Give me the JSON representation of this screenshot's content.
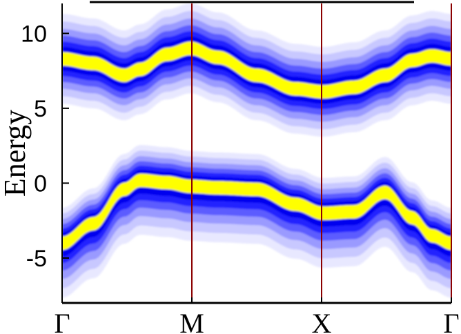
{
  "chart_data": {
    "type": "heatmap",
    "subtype": "band-structure spectral function (filled contours)",
    "ylabel": "Energy",
    "ylim": [
      -8,
      12
    ],
    "y_ticks": [
      {
        "value": 10,
        "label": "10"
      },
      {
        "value": 5,
        "label": "5"
      },
      {
        "value": 0,
        "label": "0"
      },
      {
        "value": -5,
        "label": "-5"
      }
    ],
    "x_ticks": [
      "Γ",
      "M",
      "X",
      "Γ"
    ],
    "high_symmetry_lines": true,
    "grid": false,
    "colormap": [
      "#ffffff",
      "#e8e8ff",
      "#c8c8ff",
      "#9a9aff",
      "#5c5cff",
      "#2020ff",
      "#0000ee",
      "#ffff00"
    ],
    "colors": {
      "sym_line": "#8b0000",
      "axis": "#000000"
    },
    "bands": [
      {
        "name": "upper band",
        "x": [
          0.0,
          0.08,
          0.16,
          0.2,
          0.27,
          0.33,
          0.4,
          0.5,
          0.6,
          0.67,
          0.75,
          0.83,
          0.9,
          0.95,
          1.0
        ],
        "energy": [
          8.3,
          8.0,
          7.2,
          7.6,
          8.6,
          9.0,
          8.4,
          7.2,
          6.3,
          6.1,
          6.4,
          7.2,
          8.2,
          8.5,
          8.3
        ]
      },
      {
        "name": "lower band",
        "x": [
          0.0,
          0.08,
          0.16,
          0.2,
          0.27,
          0.33,
          0.4,
          0.5,
          0.6,
          0.67,
          0.75,
          0.83,
          0.9,
          0.95,
          1.0
        ],
        "energy": [
          -3.9,
          -2.6,
          -0.3,
          0.3,
          0.15,
          -0.1,
          -0.2,
          -0.3,
          -1.3,
          -1.9,
          -1.8,
          -0.5,
          -2.2,
          -3.4,
          -3.9
        ]
      }
    ]
  }
}
